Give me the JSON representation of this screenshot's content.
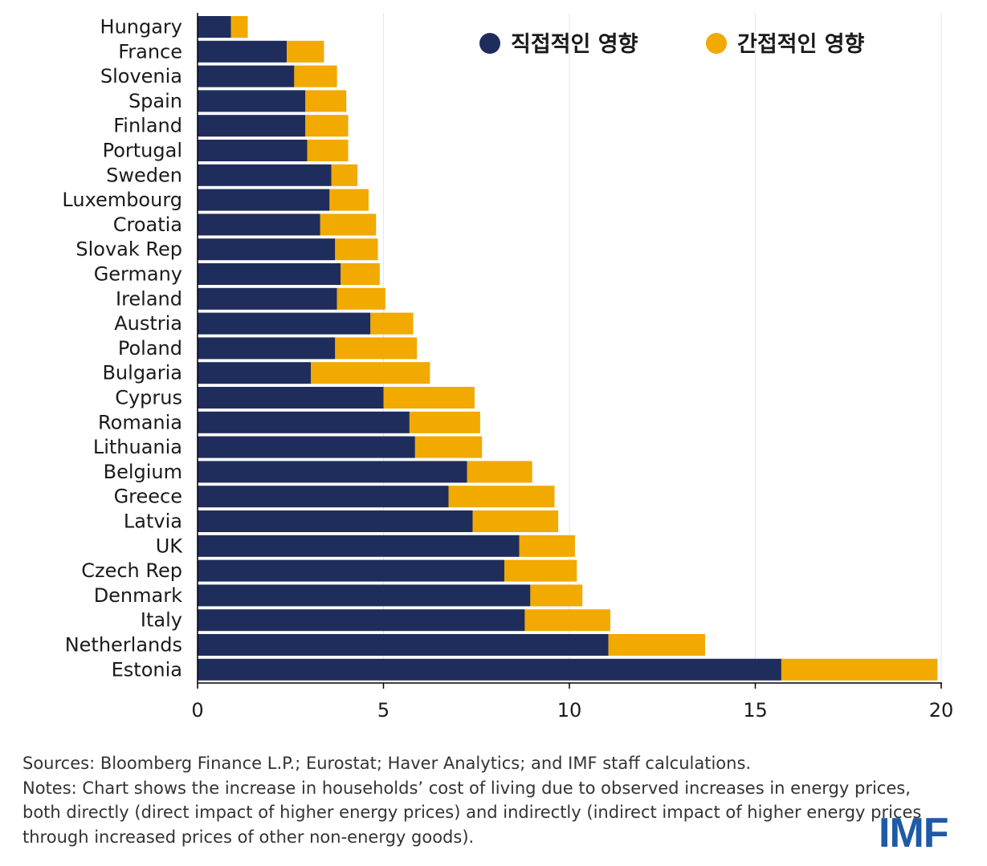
{
  "chart_data": {
    "type": "bar",
    "orientation": "horizontal",
    "stacked": true,
    "categories": [
      "Hungary",
      "France",
      "Slovenia",
      "Spain",
      "Finland",
      "Portugal",
      "Sweden",
      "Luxembourg",
      "Croatia",
      "Slovak Rep",
      "Germany",
      "Ireland",
      "Austria",
      "Poland",
      "Bulgaria",
      "Cyprus",
      "Romania",
      "Lithuania",
      "Belgium",
      "Greece",
      "Latvia",
      "UK",
      "Czech Rep",
      "Denmark",
      "Italy",
      "Netherlands",
      "Estonia"
    ],
    "series": [
      {
        "name": "직접적인 영향",
        "color": "#1f2d5c",
        "values": [
          0.9,
          2.4,
          2.6,
          2.9,
          2.9,
          2.95,
          3.6,
          3.55,
          3.3,
          3.7,
          3.85,
          3.75,
          4.65,
          3.7,
          3.05,
          5.0,
          5.7,
          5.85,
          7.25,
          6.75,
          7.4,
          8.65,
          8.25,
          8.95,
          8.8,
          11.05,
          15.7
        ]
      },
      {
        "name": "간접적인 영향",
        "color": "#f2a900",
        "values": [
          0.45,
          1.0,
          1.15,
          1.1,
          1.15,
          1.1,
          0.7,
          1.05,
          1.5,
          1.15,
          1.05,
          1.3,
          1.15,
          2.2,
          3.2,
          2.45,
          1.9,
          1.8,
          1.75,
          2.85,
          2.3,
          1.5,
          1.95,
          1.4,
          2.3,
          2.6,
          4.2
        ]
      }
    ],
    "xlim": [
      0,
      20
    ],
    "xticks": [
      "0",
      "5",
      "10",
      "15",
      "20"
    ],
    "xtick_values": [
      0,
      5,
      10,
      15,
      20
    ],
    "grid": true,
    "legend_position": "top-right"
  },
  "footnote": {
    "sources": "Sources: Bloomberg Finance L.P.; Eurostat; Haver Analytics; and IMF staff calculations.",
    "notes": "Notes: Chart shows the increase in households’ cost of living due to observed increases in energy prices, both directly (direct impact of higher energy prices) and indirectly (indirect impact of higher energy prices through increased prices of other non-energy goods)."
  },
  "logo": "IMF"
}
